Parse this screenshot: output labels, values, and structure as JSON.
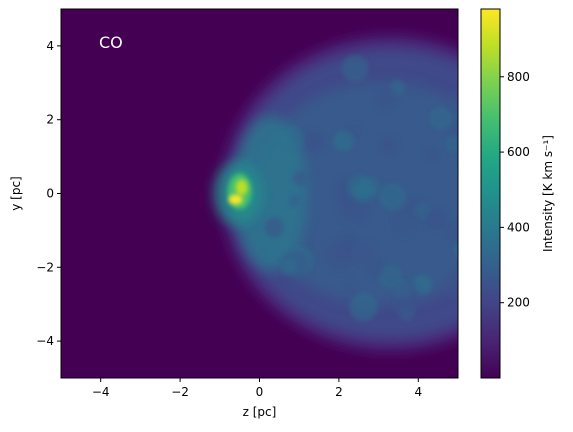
{
  "chart_data": {
    "type": "heatmap",
    "panel_label": "CO",
    "xlabel": "z [pc]",
    "ylabel": "y [pc]",
    "xlim": [
      -5,
      5
    ],
    "ylim": [
      -5,
      5
    ],
    "x_ticks": [
      -4,
      -2,
      0,
      2,
      4
    ],
    "y_ticks": [
      -4,
      -2,
      0,
      2,
      4
    ],
    "colorbar": {
      "label": "Intensity [K km s⁻¹]",
      "range": [
        0,
        980
      ],
      "ticks": [
        200,
        400,
        600,
        800
      ],
      "colormap": "viridis"
    },
    "features": {
      "background_level": 20,
      "shell_center_z": 3.3,
      "shell_center_y": 0.0,
      "shell_radius_pc": 4.2,
      "shell_level": 280,
      "peak": {
        "z": -0.55,
        "y": 0.0,
        "value": 980
      }
    }
  }
}
